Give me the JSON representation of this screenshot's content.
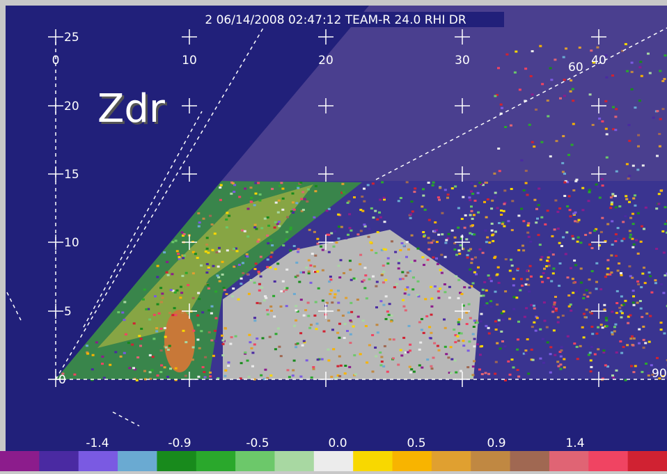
{
  "header": {
    "title": "2 06/14/2008 02:47:12 TEAM-R 24.0 RHI DR"
  },
  "overlay_label": "Zdr",
  "x_axis": {
    "ticks": [
      "0",
      "10",
      "20",
      "30",
      "40"
    ]
  },
  "y_axis": {
    "ticks": [
      "25",
      "20",
      "15",
      "10",
      "5",
      "0"
    ]
  },
  "angle_labels": [
    "60",
    "90"
  ],
  "colorbar": {
    "labels": [
      "-1.4",
      "-0.9",
      "-0.5",
      "0.0",
      "0.5",
      "0.9",
      "1.4"
    ],
    "colors": [
      "#8c1c8c",
      "#4a2aa2",
      "#7a5ae2",
      "#6aaad2",
      "#188a1c",
      "#2aa82c",
      "#6cc86a",
      "#a8d8a2",
      "#ececec",
      "#f8d800",
      "#f8b400",
      "#e0a030",
      "#c08842",
      "#a06852",
      "#e06474",
      "#f04462",
      "#d02232"
    ]
  }
}
